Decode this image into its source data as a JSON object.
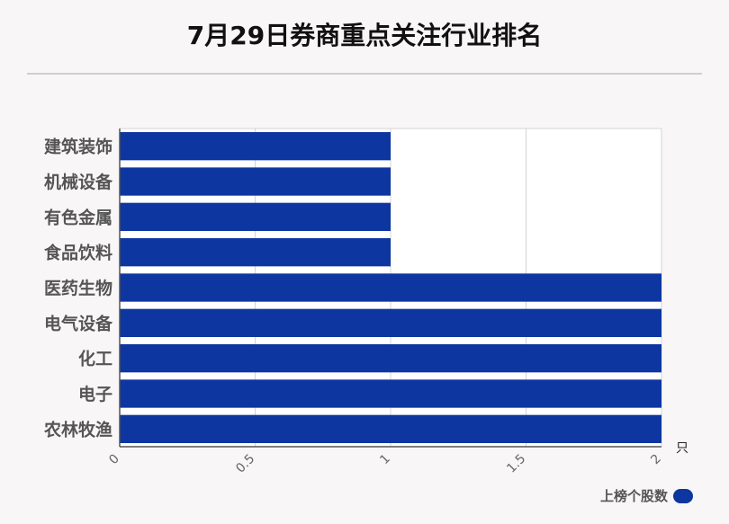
{
  "title": "7月29日券商重点关注行业排名",
  "chart_data": {
    "type": "bar",
    "orientation": "horizontal",
    "categories": [
      "建筑装饰",
      "机械设备",
      "有色金属",
      "食品饮料",
      "医药生物",
      "电气设备",
      "化工",
      "电子",
      "农林牧渔"
    ],
    "series": [
      {
        "name": "上榜个股数",
        "values": [
          1,
          1,
          1,
          1,
          2,
          2,
          2,
          2,
          2
        ]
      }
    ],
    "xlim": [
      0,
      2
    ],
    "xticks": [
      "0",
      "0.5",
      "1",
      "1.5",
      "2"
    ],
    "xunit": "只",
    "grid": true,
    "legend_position": "bottom-right",
    "bar_color": "#0d36a1"
  }
}
